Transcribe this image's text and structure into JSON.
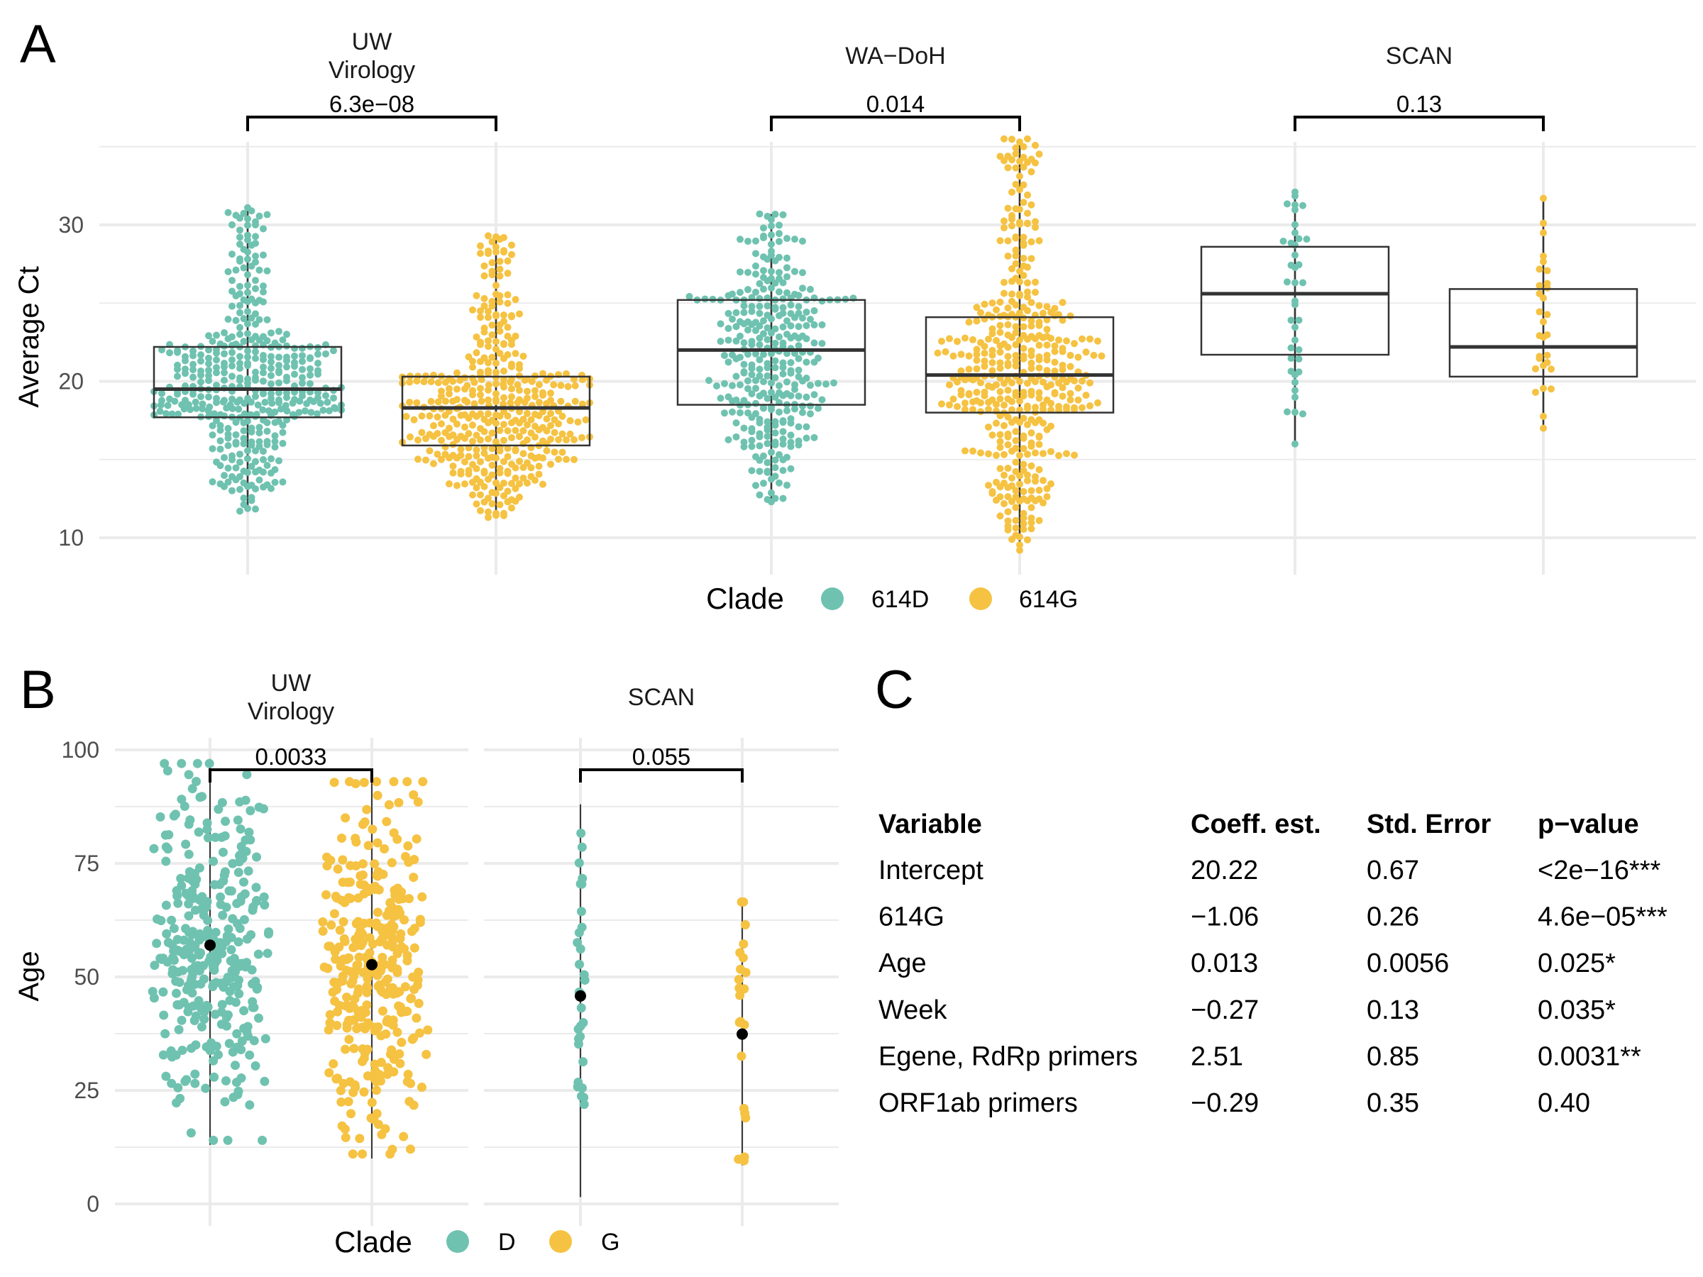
{
  "panels": {
    "A": "A",
    "B": "B",
    "C": "C"
  },
  "colors": {
    "D": "#6fc2b0",
    "G": "#f5c242",
    "grid": "#ebebeb",
    "box": "#333333",
    "dark": "#000000"
  },
  "chart_data": [
    {
      "panel": "A",
      "type": "box",
      "ylabel": "Average Ct",
      "ylim": [
        7.5,
        37.5
      ],
      "yticks": [
        10,
        20,
        30
      ],
      "grid": true,
      "legend": {
        "position": "bottom",
        "title": "Clade",
        "entries": [
          "614D",
          "614G"
        ]
      },
      "facets": [
        {
          "strip": [
            "UW",
            "Virology"
          ],
          "pvalue": "6.3e−08",
          "groups": [
            {
              "clade": "614D",
              "min": 11.7,
              "q1": 17.7,
              "median": 19.5,
              "q3": 22.2,
              "max": 31.1,
              "spread": 0.72,
              "n": 420,
              "seed": 11
            },
            {
              "clade": "614G",
              "min": 11.3,
              "q1": 15.9,
              "median": 18.3,
              "q3": 20.3,
              "max": 29.3,
              "spread": 0.62,
              "n": 420,
              "seed": 12
            }
          ]
        },
        {
          "strip": [
            "WA−DoH"
          ],
          "pvalue": "0.014",
          "groups": [
            {
              "clade": "614D",
              "min": 12.3,
              "q1": 18.5,
              "median": 22.0,
              "q3": 25.2,
              "max": 30.7,
              "spread": 0.5,
              "n": 330,
              "seed": 21
            },
            {
              "clade": "614G",
              "min": 9.2,
              "q1": 18.0,
              "median": 20.4,
              "q3": 24.1,
              "max": 35.5,
              "spread": 0.5,
              "n": 440,
              "seed": 22
            }
          ]
        },
        {
          "strip": [
            "SCAN"
          ],
          "pvalue": "0.13",
          "groups": [
            {
              "clade": "614D",
              "min": 16.0,
              "q1": 21.7,
              "median": 25.6,
              "q3": 28.6,
              "max": 32.1,
              "spread": 0.08,
              "n": 40,
              "seed": 31
            },
            {
              "clade": "614G",
              "min": 17.0,
              "q1": 20.3,
              "median": 22.2,
              "q3": 25.9,
              "max": 31.7,
              "spread": 0.06,
              "n": 30,
              "seed": 32
            }
          ]
        }
      ]
    },
    {
      "panel": "B",
      "type": "scatter",
      "ylabel": "Age",
      "ylim": [
        0,
        100
      ],
      "yticks": [
        0,
        25,
        50,
        75,
        100
      ],
      "grid": true,
      "legend": {
        "position": "bottom",
        "title": "Clade",
        "entries": [
          "D",
          "G"
        ]
      },
      "facets": [
        {
          "strip": [
            "UW",
            "Virology"
          ],
          "pvalue": "0.0033",
          "groups": [
            {
              "clade": "D",
              "mean": 57,
              "min": 13,
              "max": 98,
              "spread": 0.37,
              "n": 330,
              "seed": 41
            },
            {
              "clade": "G",
              "mean": 52.7,
              "min": 10,
              "max": 94,
              "spread": 0.35,
              "n": 330,
              "seed": 42
            }
          ]
        },
        {
          "strip": [
            "SCAN"
          ],
          "pvalue": "0.055",
          "groups": [
            {
              "clade": "D",
              "mean": 45.8,
              "min": 1.5,
              "max": 88,
              "spread": 0.03,
              "n": 32,
              "seed": 51
            },
            {
              "clade": "G",
              "mean": 37.4,
              "min": 8.5,
              "max": 67.5,
              "spread": 0.03,
              "n": 22,
              "seed": 52
            }
          ]
        }
      ]
    }
  ],
  "table": {
    "headers": [
      "Variable",
      "Coeff. est.",
      "Std. Error",
      "p−value"
    ],
    "rows": [
      [
        "Intercept",
        "20.22",
        "0.67",
        "<2e−16***"
      ],
      [
        "614G",
        "−1.06",
        "0.26",
        "4.6e−05***"
      ],
      [
        "Age",
        "0.013",
        "0.0056",
        "0.025*"
      ],
      [
        "Week",
        "−0.27",
        "0.13",
        "0.035*"
      ],
      [
        "Egene, RdRp primers",
        "2.51",
        "0.85",
        "0.0031**"
      ],
      [
        "ORF1ab primers",
        "−0.29",
        "0.35",
        "0.40"
      ]
    ]
  }
}
